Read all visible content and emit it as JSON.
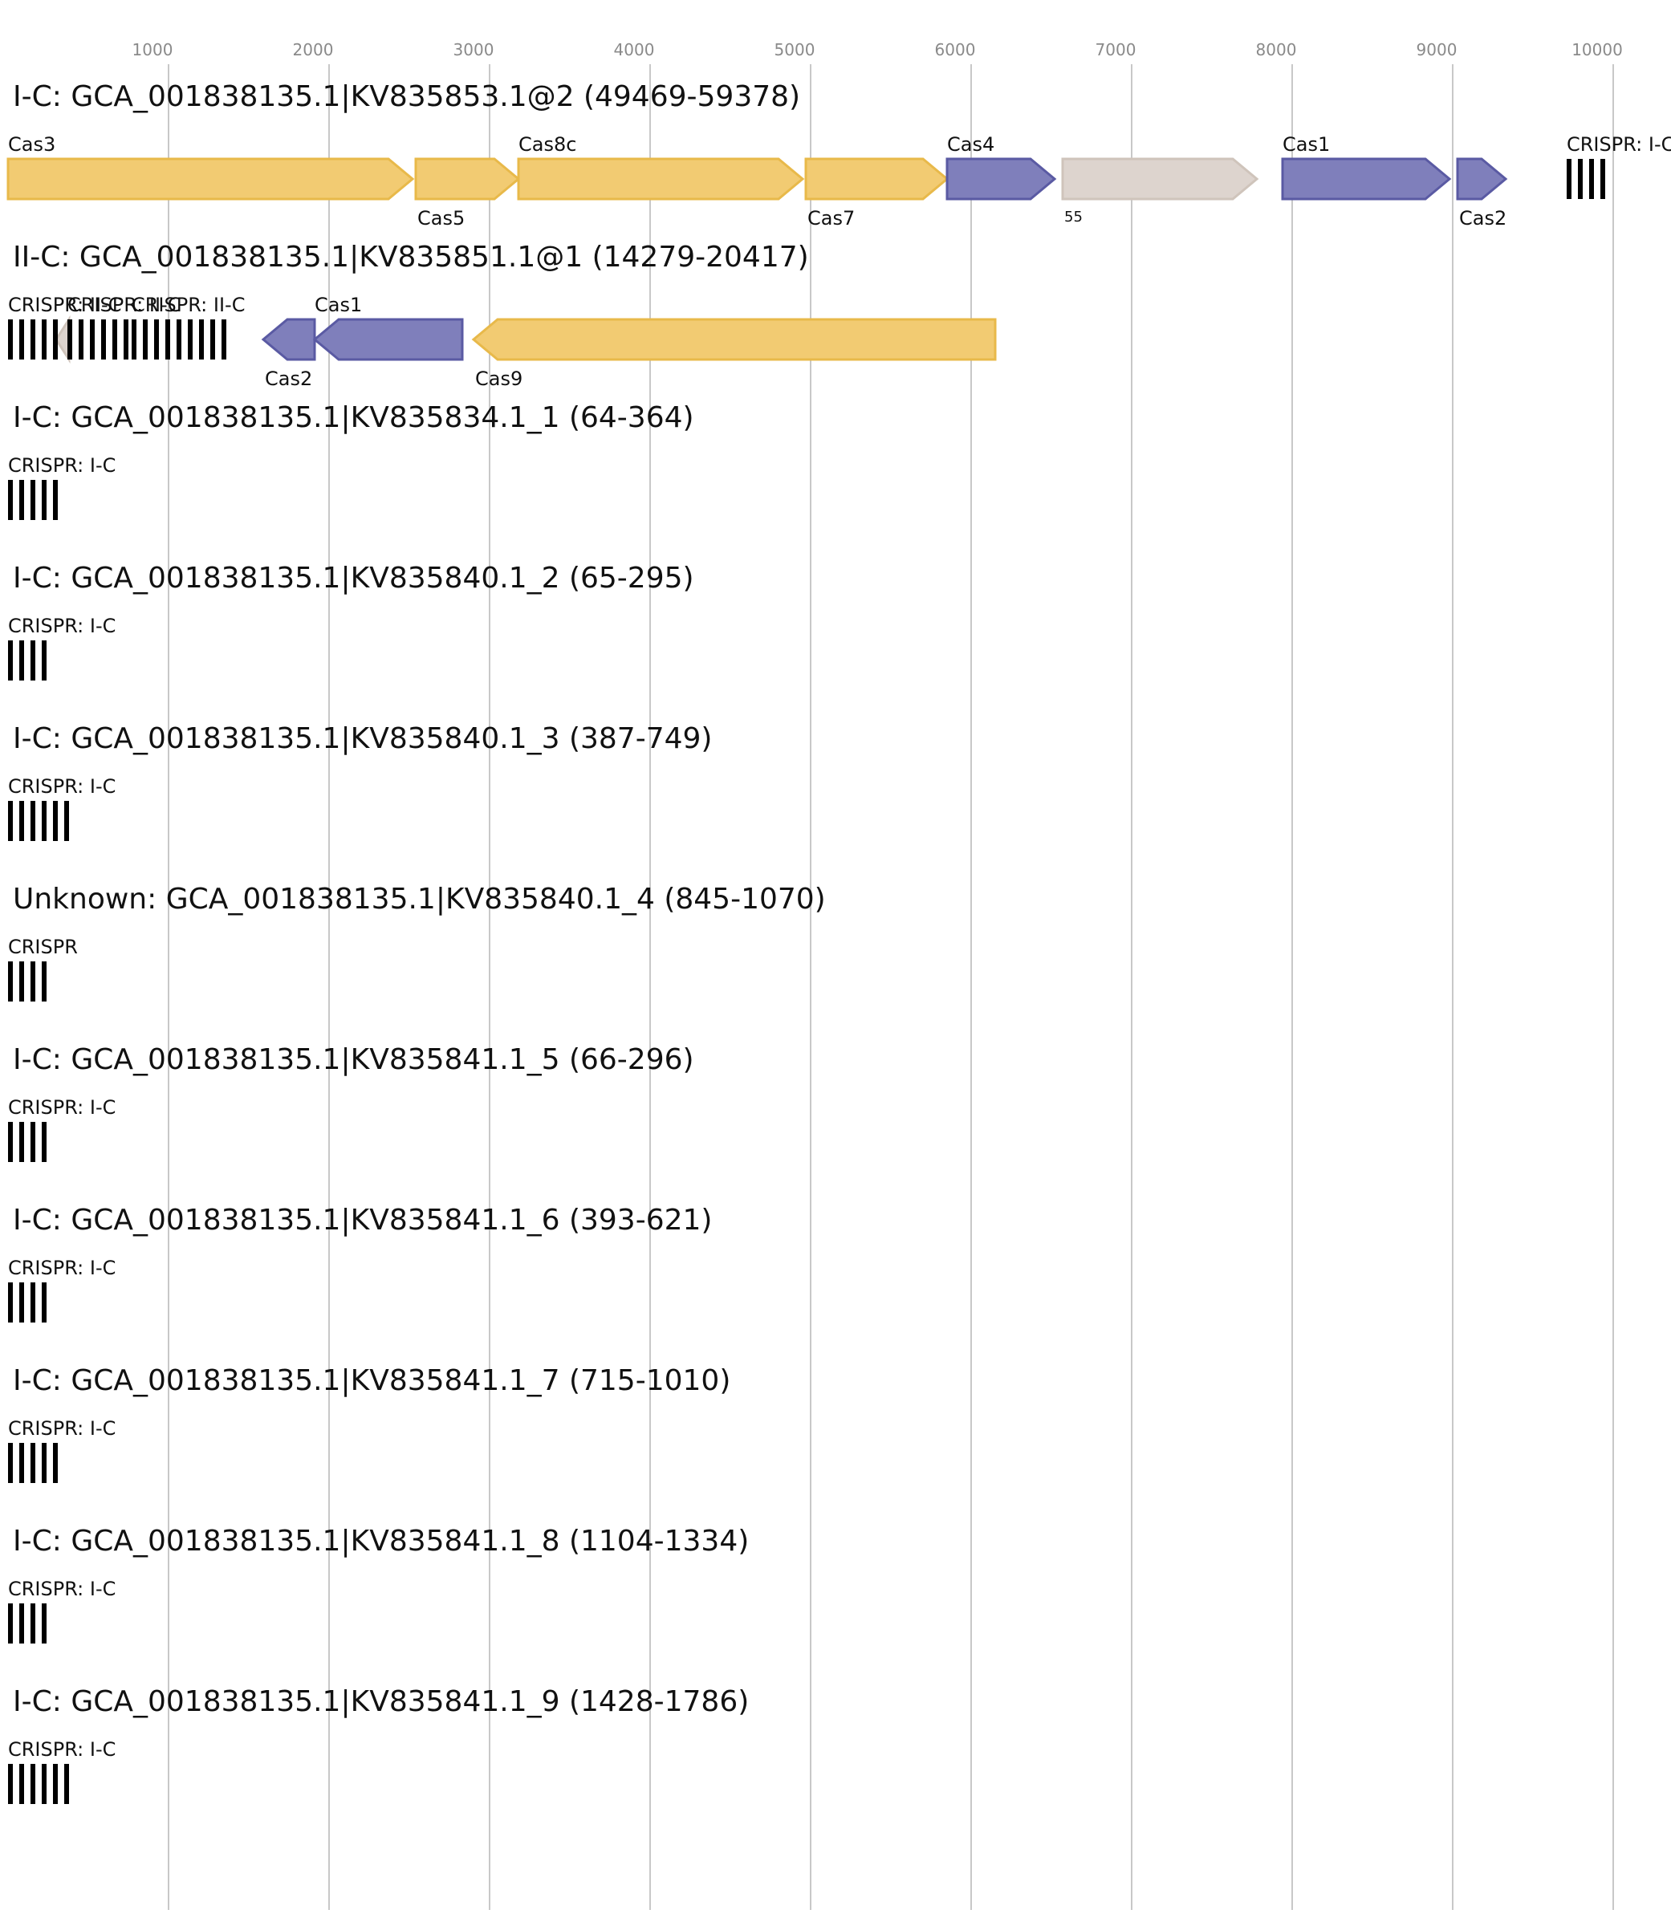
{
  "axis": {
    "ticks": [
      "1000",
      "2000",
      "3000",
      "4000",
      "5000",
      "6000",
      "7000",
      "8000",
      "9000",
      "10000"
    ],
    "tick_values": [
      1000,
      2000,
      3000,
      4000,
      5000,
      6000,
      7000,
      8000,
      9000,
      10000
    ]
  },
  "colors": {
    "adaptation": "#7f7fbb",
    "adaptation_stroke": "#5a5aa3",
    "interference": "#f2cb72",
    "interference_stroke": "#e8b94a",
    "unknown": "#ddd4ce",
    "unknown_stroke": "#cfc4bb",
    "crispr": "#000000",
    "grid": "#c8c8c8"
  },
  "tracks": [
    {
      "title": "I-C: GCA_001838135.1|KV835853.1@2 (49469-59378)",
      "genes": [
        {
          "label": "Cas3",
          "label_pos": "above",
          "start": 0,
          "end": 2520,
          "strand": "+",
          "class": "interference"
        },
        {
          "label": "Cas5",
          "label_pos": "below",
          "start": 2540,
          "end": 3180,
          "strand": "+",
          "class": "interference"
        },
        {
          "label": "Cas8c",
          "label_pos": "above",
          "start": 3180,
          "end": 4950,
          "strand": "+",
          "class": "interference"
        },
        {
          "label": "Cas7",
          "label_pos": "below",
          "start": 4970,
          "end": 5850,
          "strand": "+",
          "class": "interference"
        },
        {
          "label": "Cas4",
          "label_pos": "above",
          "start": 5850,
          "end": 6520,
          "strand": "+",
          "class": "adaptation"
        },
        {
          "label": "55",
          "label_pos": "below-small",
          "start": 6570,
          "end": 7780,
          "strand": "+",
          "class": "unknown"
        },
        {
          "label": "Cas1",
          "label_pos": "above",
          "start": 7940,
          "end": 8980,
          "strand": "+",
          "class": "adaptation"
        },
        {
          "label": "Cas2",
          "label_pos": "below",
          "start": 9030,
          "end": 9330,
          "strand": "+",
          "class": "adaptation"
        }
      ],
      "crisprs": [
        {
          "label": "CRISPR: I-C",
          "start": 9710,
          "bars": 4
        }
      ]
    },
    {
      "title": "II-C: GCA_001838135.1|KV835851.1@1 (14279-20417)",
      "genes": [
        {
          "label": "",
          "label_pos": "none",
          "start": 300,
          "end": 380,
          "strand": "-",
          "class": "unknown"
        },
        {
          "label": "Cas2",
          "label_pos": "below",
          "start": 1590,
          "end": 1910,
          "strand": "-",
          "class": "adaptation"
        },
        {
          "label": "Cas1",
          "label_pos": "above",
          "start": 1910,
          "end": 2830,
          "strand": "-",
          "class": "adaptation"
        },
        {
          "label": "Cas9",
          "label_pos": "below",
          "start": 2900,
          "end": 6150,
          "strand": "-",
          "class": "interference"
        }
      ],
      "crisprs": [
        {
          "label": "CRISPR: II-C",
          "start": 0,
          "bars": 5
        },
        {
          "label": "CRISPR: II-C",
          "start": 370,
          "bars": 6
        },
        {
          "label": "CRISPR: II-C",
          "start": 770,
          "bars": 9
        }
      ]
    },
    {
      "title": "I-C: GCA_001838135.1|KV835834.1_1 (64-364)",
      "genes": [],
      "crisprs": [
        {
          "label": "CRISPR: I-C",
          "start": 0,
          "bars": 5
        }
      ]
    },
    {
      "title": "I-C: GCA_001838135.1|KV835840.1_2 (65-295)",
      "genes": [],
      "crisprs": [
        {
          "label": "CRISPR: I-C",
          "start": 0,
          "bars": 4
        }
      ]
    },
    {
      "title": "I-C: GCA_001838135.1|KV835840.1_3 (387-749)",
      "genes": [],
      "crisprs": [
        {
          "label": "CRISPR: I-C",
          "start": 0,
          "bars": 6
        }
      ]
    },
    {
      "title": "Unknown: GCA_001838135.1|KV835840.1_4 (845-1070)",
      "genes": [],
      "crisprs": [
        {
          "label": "CRISPR",
          "start": 0,
          "bars": 4
        }
      ]
    },
    {
      "title": "I-C: GCA_001838135.1|KV835841.1_5 (66-296)",
      "genes": [],
      "crisprs": [
        {
          "label": "CRISPR: I-C",
          "start": 0,
          "bars": 4
        }
      ]
    },
    {
      "title": "I-C: GCA_001838135.1|KV835841.1_6 (393-621)",
      "genes": [],
      "crisprs": [
        {
          "label": "CRISPR: I-C",
          "start": 0,
          "bars": 4
        }
      ]
    },
    {
      "title": "I-C: GCA_001838135.1|KV835841.1_7 (715-1010)",
      "genes": [],
      "crisprs": [
        {
          "label": "CRISPR: I-C",
          "start": 0,
          "bars": 5
        }
      ]
    },
    {
      "title": "I-C: GCA_001838135.1|KV835841.1_8 (1104-1334)",
      "genes": [],
      "crisprs": [
        {
          "label": "CRISPR: I-C",
          "start": 0,
          "bars": 4
        }
      ]
    },
    {
      "title": "I-C: GCA_001838135.1|KV835841.1_9 (1428-1786)",
      "genes": [],
      "crisprs": [
        {
          "label": "CRISPR: I-C",
          "start": 0,
          "bars": 6
        }
      ]
    }
  ]
}
